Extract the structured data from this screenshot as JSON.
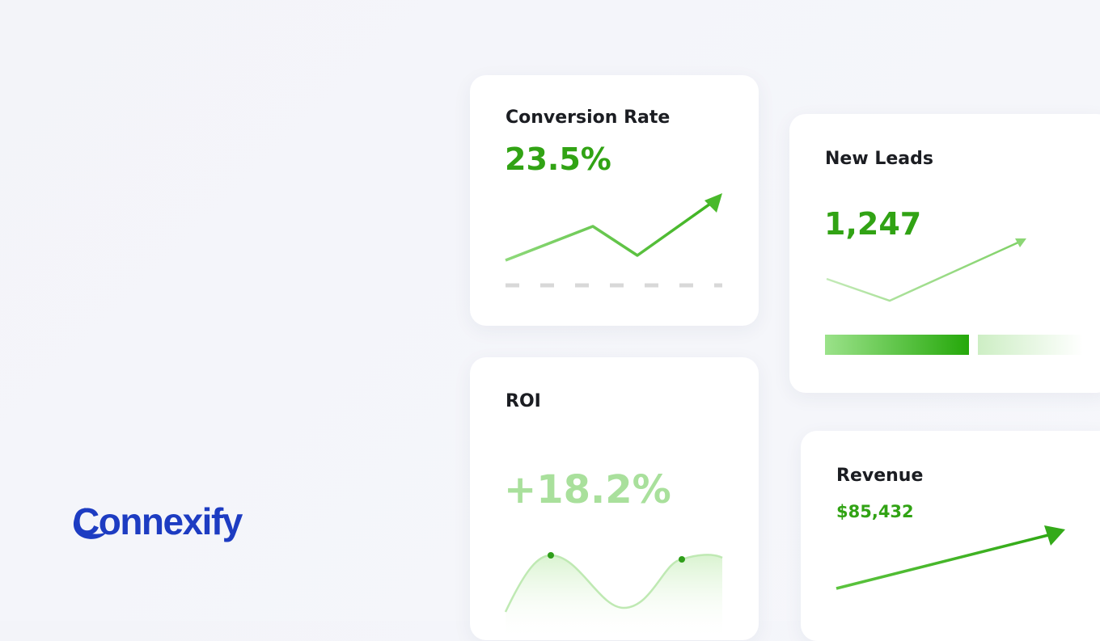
{
  "brand": "Connexify",
  "cards": [
    {
      "title": "Conversion Rate",
      "value": "23.5%"
    },
    {
      "title": "New Leads",
      "value": "1,247"
    },
    {
      "title": "ROI",
      "value": "+18.2%"
    },
    {
      "title": "Revenue",
      "value": "$85,432"
    }
  ]
}
